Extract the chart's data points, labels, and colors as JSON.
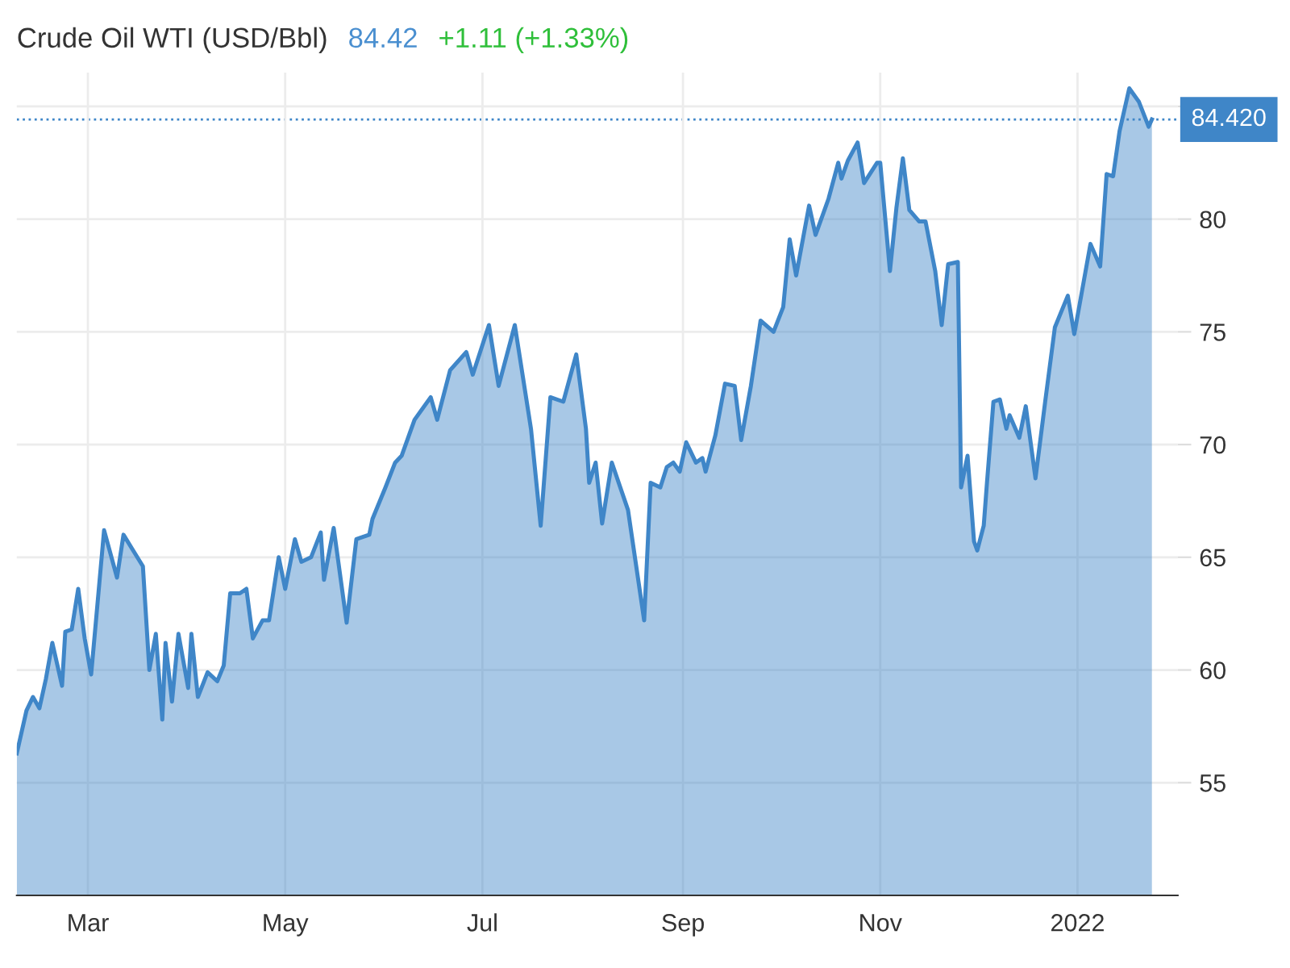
{
  "chart_data": {
    "type": "area",
    "title": "Crude Oil WTI (USD/Bbl)",
    "annotations": [
      "84.42",
      "+1.11 (+1.33%)"
    ],
    "x": [
      "2021-02-07",
      "2021-02-10",
      "2021-02-12",
      "2021-02-14",
      "2021-02-16",
      "2021-02-18",
      "2021-02-21",
      "2021-02-22",
      "2021-02-24",
      "2021-02-26",
      "2021-02-28",
      "2021-03-02",
      "2021-03-06",
      "2021-03-10",
      "2021-03-12",
      "2021-03-15",
      "2021-03-18",
      "2021-03-20",
      "2021-03-22",
      "2021-03-24",
      "2021-03-25",
      "2021-03-27",
      "2021-03-29",
      "2021-04-01",
      "2021-04-02",
      "2021-04-04",
      "2021-04-07",
      "2021-04-10",
      "2021-04-12",
      "2021-04-14",
      "2021-04-17",
      "2021-04-19",
      "2021-04-21",
      "2021-04-24",
      "2021-04-26",
      "2021-04-29",
      "2021-05-01",
      "2021-05-04",
      "2021-05-06",
      "2021-05-09",
      "2021-05-12",
      "2021-05-13",
      "2021-05-16",
      "2021-05-20",
      "2021-05-23",
      "2021-05-27",
      "2021-05-28",
      "2021-06-01",
      "2021-06-04",
      "2021-06-06",
      "2021-06-10",
      "2021-06-15",
      "2021-06-17",
      "2021-06-21",
      "2021-06-26",
      "2021-06-28",
      "2021-07-03",
      "2021-07-06",
      "2021-07-11",
      "2021-07-16",
      "2021-07-19",
      "2021-07-22",
      "2021-07-26",
      "2021-07-30",
      "2021-08-02",
      "2021-08-03",
      "2021-08-05",
      "2021-08-07",
      "2021-08-10",
      "2021-08-15",
      "2021-08-20",
      "2021-08-22",
      "2021-08-25",
      "2021-08-27",
      "2021-08-29",
      "2021-08-31",
      "2021-09-02",
      "2021-09-05",
      "2021-09-07",
      "2021-09-08",
      "2021-09-11",
      "2021-09-14",
      "2021-09-17",
      "2021-09-19",
      "2021-09-22",
      "2021-09-25",
      "2021-09-29",
      "2021-10-02",
      "2021-10-04",
      "2021-10-06",
      "2021-10-10",
      "2021-10-12",
      "2021-10-16",
      "2021-10-19",
      "2021-10-20",
      "2021-10-22",
      "2021-10-25",
      "2021-10-27",
      "2021-10-31",
      "2021-11-01",
      "2021-11-04",
      "2021-11-06",
      "2021-11-08",
      "2021-11-10",
      "2021-11-13",
      "2021-11-15",
      "2021-11-18",
      "2021-11-20",
      "2021-11-22",
      "2021-11-25",
      "2021-11-26",
      "2021-11-28",
      "2021-11-30",
      "2021-12-01",
      "2021-12-03",
      "2021-12-04",
      "2021-12-06",
      "2021-12-08",
      "2021-12-10",
      "2021-12-11",
      "2021-12-14",
      "2021-12-16",
      "2021-12-19",
      "2021-12-22",
      "2021-12-25",
      "2021-12-29",
      "2021-12-31",
      "2022-01-03",
      "2022-01-05",
      "2022-01-08",
      "2022-01-10",
      "2022-01-12",
      "2022-01-14",
      "2022-01-17",
      "2022-01-20",
      "2022-01-23",
      "2022-01-24"
    ],
    "series": [
      {
        "color": "#3f86c8",
        "values": [
          56.3,
          58.2,
          58.8,
          58.3,
          59.6,
          61.2,
          59.3,
          61.7,
          61.8,
          63.6,
          61.4,
          59.8,
          66.2,
          64.1,
          66.0,
          65.3,
          64.6,
          60.0,
          61.6,
          57.8,
          61.2,
          58.6,
          61.6,
          59.2,
          61.6,
          58.8,
          59.9,
          59.5,
          60.2,
          63.4,
          63.4,
          63.6,
          61.4,
          62.2,
          62.2,
          65.0,
          63.6,
          65.8,
          64.8,
          65.0,
          66.1,
          64.0,
          66.3,
          62.1,
          65.8,
          66.0,
          66.7,
          68.1,
          69.2,
          69.5,
          71.1,
          72.1,
          71.1,
          73.3,
          74.1,
          73.1,
          75.3,
          72.6,
          75.3,
          70.7,
          66.4,
          72.1,
          71.9,
          74.0,
          70.7,
          68.3,
          69.2,
          66.5,
          69.2,
          67.1,
          62.2,
          68.3,
          68.1,
          69.0,
          69.2,
          68.8,
          70.1,
          69.2,
          69.4,
          68.8,
          70.4,
          72.7,
          72.6,
          70.2,
          72.6,
          75.5,
          75.0,
          76.1,
          79.1,
          77.5,
          80.6,
          79.3,
          80.9,
          82.5,
          81.8,
          82.6,
          83.4,
          81.6,
          82.5,
          82.5,
          77.7,
          80.5,
          82.7,
          80.4,
          79.9,
          79.9,
          77.7,
          75.3,
          78.0,
          78.1,
          68.1,
          69.5,
          65.7,
          65.3,
          66.4,
          68.3,
          71.9,
          72.0,
          70.7,
          71.3,
          70.3,
          71.7,
          68.5,
          71.9,
          75.2,
          76.6,
          74.9,
          77.3,
          78.9,
          77.9,
          82.0,
          81.9,
          83.9,
          85.8,
          85.2,
          84.1,
          84.42
        ]
      }
    ],
    "xlim": [
      "2021-02-07",
      "2022-02-01"
    ],
    "xticks": [
      {
        "value": "2021-03-01",
        "label": "Mar"
      },
      {
        "value": "2021-05-01",
        "label": "May"
      },
      {
        "value": "2021-07-01",
        "label": "Jul"
      },
      {
        "value": "2021-09-01",
        "label": "Sep"
      },
      {
        "value": "2021-11-01",
        "label": "Nov"
      },
      {
        "value": "2022-01-01",
        "label": "2022"
      }
    ],
    "ylim": [
      50,
      86.5
    ],
    "yticks": [
      55,
      60,
      65,
      70,
      75,
      80,
      {
        "value": 85,
        "label": null
      }
    ],
    "ref_lines": [
      {
        "axis": "y",
        "value": 84.42,
        "label": "84.420",
        "color": "#3f86c8",
        "line_style": "dotted"
      }
    ],
    "grid": true
  }
}
